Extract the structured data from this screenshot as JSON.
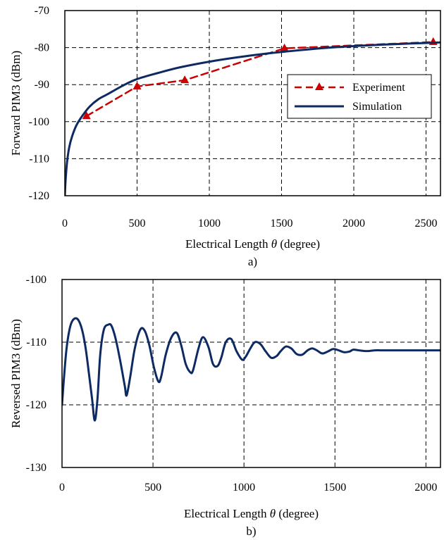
{
  "chart_data": [
    {
      "type": "line",
      "caption": "a)",
      "title": "",
      "xlabel": "Electrical Length θ (degree)",
      "ylabel": "Forward PIM3 (dBm)",
      "xlim": [
        0,
        2600
      ],
      "ylim": [
        -120,
        -70
      ],
      "xticks": [
        0,
        500,
        1000,
        1500,
        2000,
        2500
      ],
      "yticks": [
        -120,
        -110,
        -100,
        -90,
        -80,
        -70
      ],
      "xtick_labels": [
        "0",
        "500",
        "1000",
        "1500",
        "2000",
        "2500"
      ],
      "ytick_labels": [
        "-120",
        "-110",
        "-100",
        "-90",
        "-80",
        "-70"
      ],
      "x_gridlines": [
        500,
        1000,
        1500,
        2000,
        2500
      ],
      "y_gridlines": [
        -110,
        -100,
        -90,
        -80
      ],
      "grid": true,
      "legend_position": "right",
      "series": [
        {
          "name": "Experiment",
          "color": "#cc0000",
          "style": "dashed",
          "marker": "triangle",
          "x": [
            150,
            500,
            830,
            1520,
            2550
          ],
          "y": [
            -98.5,
            -90.5,
            -88.8,
            -80.2,
            -78.5
          ]
        },
        {
          "name": "Simulation",
          "color": "#0d2a63",
          "style": "solid",
          "x": [
            0,
            5,
            15,
            30,
            50,
            80,
            120,
            170,
            230,
            300,
            400,
            500,
            650,
            800,
            1000,
            1200,
            1400,
            1600,
            1800,
            2000,
            2200,
            2400,
            2600
          ],
          "y": [
            -120,
            -116,
            -111,
            -107,
            -104,
            -101,
            -98.5,
            -96,
            -94,
            -92.5,
            -90.3,
            -88.5,
            -86.8,
            -85.3,
            -83.8,
            -82.6,
            -81.6,
            -80.8,
            -80.1,
            -79.6,
            -79.2,
            -78.9,
            -78.6
          ]
        }
      ]
    },
    {
      "type": "line",
      "caption": "b)",
      "title": "",
      "xlabel": "Electrical Length θ (degree)",
      "ylabel": "Reversed PIM3 (dBm)",
      "xlim": [
        0,
        2080
      ],
      "ylim": [
        -130,
        -100
      ],
      "xticks": [
        0,
        500,
        1000,
        1500,
        2000
      ],
      "yticks": [
        -130,
        -120,
        -110,
        -100
      ],
      "xtick_labels": [
        "0",
        "500",
        "1000",
        "1500",
        "2000"
      ],
      "ytick_labels": [
        "-130",
        "-120",
        "-110",
        "-100"
      ],
      "x_gridlines": [
        500,
        1000,
        1500,
        2000
      ],
      "y_gridlines": [
        -120,
        -110
      ],
      "grid": true,
      "series": [
        {
          "name": "",
          "color": "#0d2a63",
          "style": "solid",
          "x": [
            0,
            10,
            25,
            45,
            65,
            88,
            110,
            130,
            150,
            165,
            180,
            195,
            210,
            230,
            255,
            272,
            295,
            320,
            345,
            355,
            375,
            400,
            430,
            455,
            480,
            505,
            530,
            545,
            570,
            600,
            630,
            655,
            680,
            705,
            720,
            750,
            775,
            805,
            830,
            855,
            875,
            900,
            930,
            960,
            990,
            1010,
            1035,
            1060,
            1090,
            1120,
            1150,
            1180,
            1200,
            1230,
            1260,
            1290,
            1320,
            1350,
            1375,
            1400,
            1430,
            1460,
            1490,
            1520,
            1550,
            1580,
            1600,
            1630,
            1660,
            1690,
            1720,
            1750,
            1780,
            1810,
            1840,
            1870,
            1900,
            1950,
            2000,
            2050,
            2080
          ],
          "y": [
            -120,
            -116,
            -111,
            -107.5,
            -106.3,
            -106.4,
            -108,
            -111,
            -115.5,
            -119,
            -122.5,
            -119,
            -112,
            -108,
            -107.2,
            -107.4,
            -109.5,
            -113,
            -117,
            -118.5,
            -115.5,
            -111,
            -108,
            -108.2,
            -110.5,
            -114,
            -116.3,
            -115.5,
            -112,
            -109.3,
            -108.5,
            -110.5,
            -113.5,
            -114.8,
            -114.5,
            -111,
            -109.2,
            -110.8,
            -113.5,
            -113.8,
            -112.5,
            -110,
            -109.5,
            -111.5,
            -112.8,
            -112.3,
            -111,
            -110,
            -110.3,
            -111.5,
            -112.5,
            -112.2,
            -111.5,
            -110.7,
            -111,
            -111.9,
            -112,
            -111.3,
            -111,
            -111.3,
            -111.8,
            -111.5,
            -111.1,
            -111.3,
            -111.6,
            -111.5,
            -111.2,
            -111.3,
            -111.4,
            -111.4,
            -111.3,
            -111.3,
            -111.3,
            -111.3,
            -111.3,
            -111.3,
            -111.3,
            -111.3,
            -111.3,
            -111.3,
            -111.3
          ]
        }
      ]
    }
  ]
}
